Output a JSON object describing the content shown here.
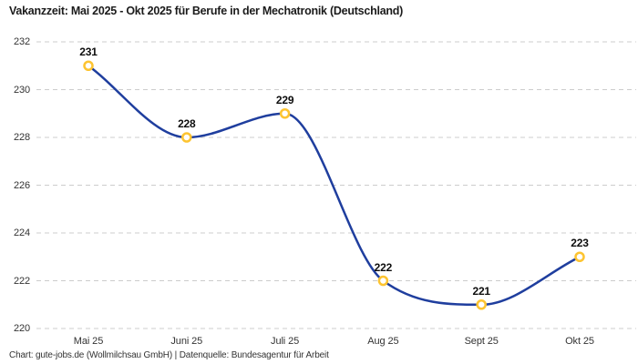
{
  "title": "Vakanzzeit: Mai 2025 - Okt 2025 für Berufe in der Mechatronik (Deutschland)",
  "footer": {
    "credit": "Chart: gute-jobs.de (Wollmilchsau GmbH) | Datenquelle: Bundesagentur für Arbeit"
  },
  "colors": {
    "line": "#1f3e9e",
    "marker_ring": "#fdc431",
    "marker_fill": "#ffffff",
    "grid": "#cccccc",
    "title_text": "#1b1b1b",
    "axis_text": "#333333",
    "data_label_text": "#0d0d0d"
  },
  "chart_data": {
    "type": "line",
    "categories": [
      "Mai 25",
      "Juni 25",
      "Juli 25",
      "Aug 25",
      "Sept 25",
      "Okt 25"
    ],
    "values": [
      231,
      228,
      229,
      222,
      221,
      223
    ],
    "series": [
      {
        "name": "Vakanzzeit",
        "values": [
          231,
          228,
          229,
          222,
          221,
          223
        ]
      }
    ],
    "title": "Vakanzzeit: Mai 2025 - Okt 2025 für Berufe in der Mechatronik (Deutschland)",
    "xlabel": "",
    "ylabel": "",
    "ylim": [
      220,
      232
    ],
    "ytick_step": 2,
    "yticks": [
      220,
      222,
      224,
      226,
      228,
      230,
      232
    ],
    "grid": "horizontal-dashed",
    "legend": "none",
    "curve": "smooth-monotone",
    "data_labels": true
  }
}
